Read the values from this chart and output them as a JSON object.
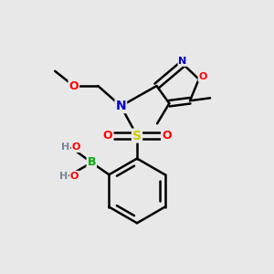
{
  "background_color": "#e8e8e8",
  "bond_color": "#000000",
  "atom_colors": {
    "N": "#0000cc",
    "O": "#ff0000",
    "S": "#cccc00",
    "B": "#00aa00",
    "H": "#778899",
    "C": "#000000"
  },
  "figsize": [
    3.0,
    3.0
  ],
  "dpi": 100
}
